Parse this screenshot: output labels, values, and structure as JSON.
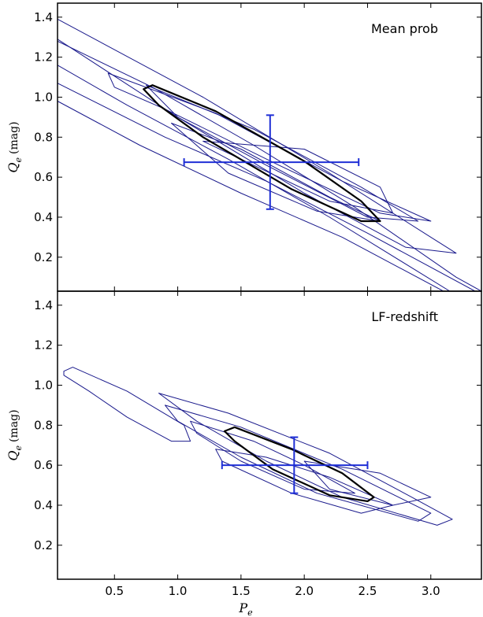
{
  "chart_data": [
    {
      "type": "contour",
      "title": "Mean prob",
      "xlabel": "P_e",
      "ylabel": "Q_e (mag)",
      "xlim": [
        0.05,
        3.4
      ],
      "ylim": [
        0.03,
        1.47
      ],
      "xticks": [
        "0.5",
        "1.0",
        "1.5",
        "2.0",
        "2.5",
        "3.0"
      ],
      "yticks": [
        "0.2",
        "0.4",
        "0.6",
        "0.8",
        "1.0",
        "1.2",
        "1.4"
      ],
      "legend": "none",
      "colors": {
        "contour": "#1a1a8c",
        "highlight": "#000000",
        "errorbar": "#1f2fd6"
      },
      "errorbar": {
        "x": 1.73,
        "y": 0.675,
        "xerr": [
          1.05,
          2.43
        ],
        "yerr": [
          0.44,
          0.91
        ]
      },
      "contours": [
        {
          "style": "thin",
          "points": [
            [
              0.05,
              1.39
            ],
            [
              1.2,
              1.0
            ],
            [
              2.2,
              0.62
            ],
            [
              3.0,
              0.3
            ],
            [
              3.2,
              0.22
            ],
            [
              2.8,
              0.25
            ],
            [
              2.0,
              0.52
            ],
            [
              1.0,
              0.9
            ],
            [
              0.05,
              1.29
            ]
          ]
        },
        {
          "style": "thin",
          "points": [
            [
              0.05,
              1.28
            ],
            [
              0.8,
              1.05
            ],
            [
              1.6,
              0.76
            ],
            [
              2.4,
              0.45
            ],
            [
              3.2,
              0.1
            ],
            [
              3.4,
              0.03
            ],
            [
              3.15,
              0.03
            ],
            [
              2.2,
              0.4
            ],
            [
              1.4,
              0.69
            ],
            [
              0.6,
              0.96
            ],
            [
              0.05,
              1.16
            ]
          ]
        },
        {
          "style": "thin",
          "points": [
            [
              0.05,
              1.07
            ],
            [
              0.9,
              0.8
            ],
            [
              1.7,
              0.58
            ],
            [
              2.5,
              0.32
            ],
            [
              3.35,
              0.03
            ],
            [
              3.1,
              0.03
            ],
            [
              2.3,
              0.3
            ],
            [
              1.5,
              0.52
            ],
            [
              0.7,
              0.76
            ],
            [
              0.05,
              0.98
            ]
          ]
        },
        {
          "style": "thin",
          "points": [
            [
              0.45,
              1.12
            ],
            [
              1.3,
              0.92
            ],
            [
              2.3,
              0.58
            ],
            [
              3.0,
              0.38
            ],
            [
              2.6,
              0.42
            ],
            [
              1.8,
              0.66
            ],
            [
              0.9,
              0.94
            ],
            [
              0.5,
              1.05
            ]
          ]
        },
        {
          "style": "thin",
          "points": [
            [
              0.75,
              1.06
            ],
            [
              1.6,
              0.84
            ],
            [
              2.45,
              0.55
            ],
            [
              2.9,
              0.38
            ],
            [
              2.5,
              0.4
            ],
            [
              1.7,
              0.66
            ],
            [
              1.0,
              0.9
            ]
          ]
        },
        {
          "style": "thin",
          "points": [
            [
              1.2,
              0.78
            ],
            [
              2.0,
              0.74
            ],
            [
              2.6,
              0.55
            ],
            [
              2.7,
              0.42
            ],
            [
              2.2,
              0.48
            ],
            [
              1.6,
              0.66
            ]
          ]
        },
        {
          "style": "thin",
          "points": [
            [
              0.95,
              0.87
            ],
            [
              1.5,
              0.74
            ],
            [
              2.2,
              0.5
            ],
            [
              2.6,
              0.38
            ],
            [
              2.1,
              0.43
            ],
            [
              1.4,
              0.62
            ]
          ]
        },
        {
          "style": "thick",
          "points": [
            [
              0.73,
              1.04
            ],
            [
              0.8,
              1.06
            ],
            [
              1.3,
              0.93
            ],
            [
              2.0,
              0.68
            ],
            [
              2.45,
              0.48
            ],
            [
              2.6,
              0.38
            ],
            [
              2.45,
              0.38
            ],
            [
              1.9,
              0.54
            ],
            [
              1.2,
              0.8
            ],
            [
              0.85,
              0.96
            ]
          ]
        }
      ]
    },
    {
      "type": "contour",
      "title": "LF-redshift",
      "xlabel": "P_e",
      "ylabel": "Q_e (mag)",
      "xlim": [
        0.05,
        3.4
      ],
      "ylim": [
        0.03,
        1.47
      ],
      "xticks": [
        "0.5",
        "1.0",
        "1.5",
        "2.0",
        "2.5",
        "3.0"
      ],
      "yticks": [
        "0.2",
        "0.4",
        "0.6",
        "0.8",
        "1.0",
        "1.2",
        "1.4"
      ],
      "legend": "none",
      "colors": {
        "contour": "#1a1a8c",
        "highlight": "#000000",
        "errorbar": "#1f2fd6"
      },
      "errorbar": {
        "x": 1.92,
        "y": 0.6,
        "xerr": [
          1.35,
          2.5
        ],
        "yerr": [
          0.46,
          0.74
        ]
      },
      "contours": [
        {
          "style": "thin",
          "points": [
            [
              0.1,
              1.07
            ],
            [
              0.17,
              1.09
            ],
            [
              0.6,
              0.97
            ],
            [
              1.05,
              0.8
            ],
            [
              1.1,
              0.72
            ],
            [
              0.95,
              0.72
            ],
            [
              0.6,
              0.84
            ],
            [
              0.3,
              0.97
            ],
            [
              0.1,
              1.05
            ]
          ]
        },
        {
          "style": "thin",
          "points": [
            [
              0.85,
              0.96
            ],
            [
              1.4,
              0.86
            ],
            [
              2.2,
              0.66
            ],
            [
              2.85,
              0.44
            ],
            [
              3.17,
              0.33
            ],
            [
              3.05,
              0.3
            ],
            [
              2.3,
              0.44
            ],
            [
              1.7,
              0.62
            ],
            [
              1.15,
              0.82
            ]
          ]
        },
        {
          "style": "thin",
          "points": [
            [
              0.9,
              0.9
            ],
            [
              1.5,
              0.79
            ],
            [
              2.3,
              0.58
            ],
            [
              3.0,
              0.36
            ],
            [
              2.9,
              0.32
            ],
            [
              2.1,
              0.46
            ],
            [
              1.5,
              0.64
            ],
            [
              1.0,
              0.82
            ]
          ]
        },
        {
          "style": "thin",
          "points": [
            [
              1.3,
              0.68
            ],
            [
              1.7,
              0.64
            ],
            [
              2.2,
              0.54
            ],
            [
              2.7,
              0.4
            ],
            [
              2.45,
              0.36
            ],
            [
              1.9,
              0.46
            ],
            [
              1.35,
              0.62
            ]
          ]
        },
        {
          "style": "thin",
          "points": [
            [
              1.1,
              0.82
            ],
            [
              1.6,
              0.72
            ],
            [
              2.0,
              0.6
            ],
            [
              2.4,
              0.46
            ],
            [
              2.0,
              0.48
            ],
            [
              1.5,
              0.62
            ],
            [
              1.15,
              0.76
            ]
          ]
        },
        {
          "style": "thin",
          "points": [
            [
              2.0,
              0.62
            ],
            [
              2.6,
              0.56
            ],
            [
              3.0,
              0.44
            ],
            [
              2.7,
              0.4
            ],
            [
              2.2,
              0.48
            ]
          ]
        },
        {
          "style": "thick",
          "points": [
            [
              1.37,
              0.77
            ],
            [
              1.45,
              0.79
            ],
            [
              1.9,
              0.68
            ],
            [
              2.3,
              0.56
            ],
            [
              2.55,
              0.44
            ],
            [
              2.5,
              0.42
            ],
            [
              2.2,
              0.45
            ],
            [
              1.75,
              0.58
            ],
            [
              1.45,
              0.72
            ]
          ]
        }
      ]
    }
  ]
}
